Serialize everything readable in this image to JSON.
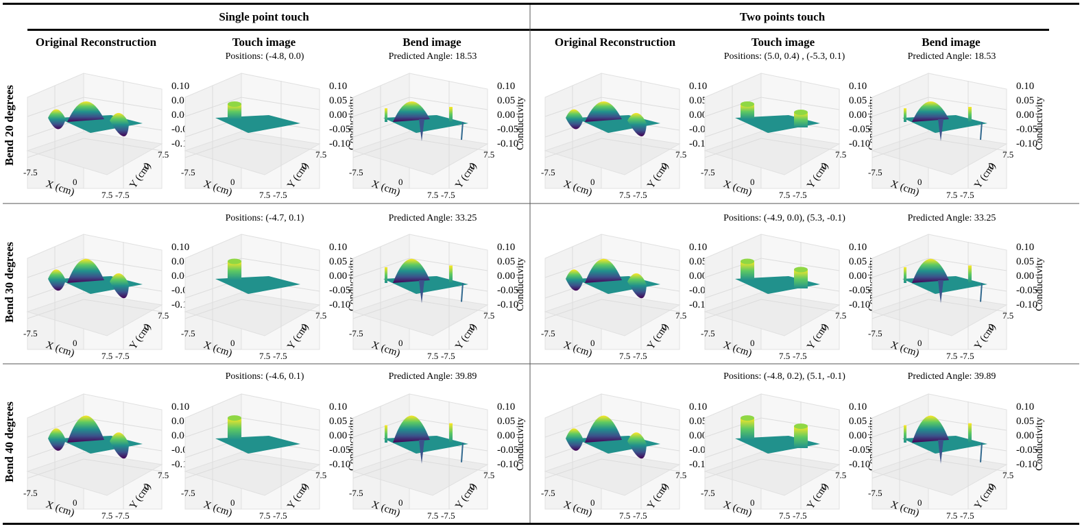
{
  "header": {
    "groups": [
      {
        "label": "Single point touch"
      },
      {
        "label": "Two points touch"
      }
    ],
    "columns": [
      "Original Reconstruction",
      "Touch image",
      "Bend image",
      "Original Reconstruction",
      "Touch image",
      "Bend image"
    ]
  },
  "rows": [
    {
      "label": "Bend 20 degrees",
      "annotations": [
        "",
        "Positions: (-4.8, 0.0)",
        "Predicted Angle: 18.53",
        "",
        "Positions: (5.0, 0.4) , (-5.3, 0.1)",
        "Predicted Angle: 18.53"
      ]
    },
    {
      "label": "Bend 30 degrees",
      "annotations": [
        "",
        "Positions: (-4.7, 0.1)",
        "Predicted Angle: 33.25",
        "",
        "Positions: (-4.9, 0.0), (5.3, -0.1)",
        "Predicted Angle: 33.25"
      ]
    },
    {
      "label": "Bend 40 degrees",
      "annotations": [
        "",
        "Positions: (-4.6, 0.1)",
        "Predicted Angle: 39.89",
        "",
        "Positions: (-4.8, 0.2), (5.1, -0.1)",
        "Predicted Angle: 39.89"
      ]
    }
  ],
  "axes": {
    "x_label": "X (cm)",
    "y_label": "Y (cm)",
    "z_label": "Conductivity",
    "x_ticks": [
      "-7.5",
      "0",
      "7.5"
    ],
    "y_ticks": [
      "-7.5",
      "0",
      "7.5"
    ],
    "z_ticks": [
      "0.10",
      "0.05",
      "0.00",
      "-0.05",
      "-0.10"
    ]
  },
  "colors": {
    "viridis_low": "#440154",
    "viridis_mid": "#21918c",
    "viridis_high": "#fde725",
    "pane": "#f2f2f2",
    "pane_edge": "#e0e0e0",
    "rule": "#000000"
  }
}
